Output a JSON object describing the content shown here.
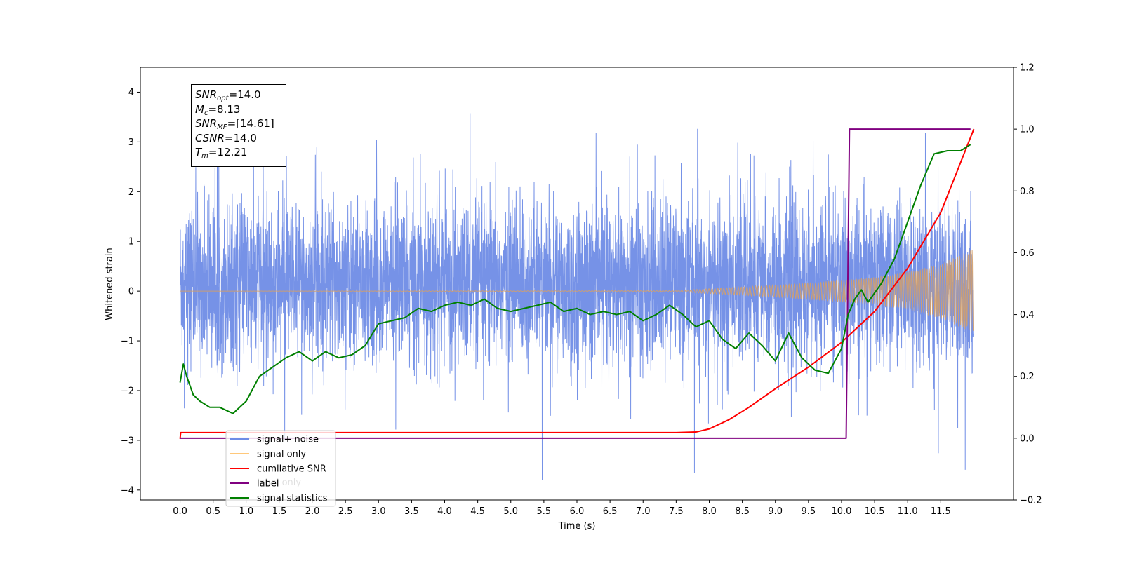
{
  "chart_data": {
    "type": "line",
    "xlabel": "Time (s)",
    "ylabel": "Whitened strain",
    "xlim": [
      -0.6,
      12.6
    ],
    "ylim": [
      -4.2,
      4.5
    ],
    "ylim_right": [
      -0.2,
      1.2
    ],
    "x_ticks": [
      "0.0",
      "0.5",
      "1.0",
      "1.5",
      "2.0",
      "2.5",
      "3.0",
      "3.5",
      "4.0",
      "4.5",
      "5.0",
      "5.5",
      "6.0",
      "6.5",
      "7.0",
      "7.5",
      "8.0",
      "8.5",
      "9.0",
      "9.5",
      "10.0",
      "10.5",
      "11.0",
      "11.5"
    ],
    "y_ticks_left": [
      "4",
      "3",
      "2",
      "1",
      "0",
      "−1",
      "−2",
      "−3",
      "−4"
    ],
    "y_ticks_right": [
      "1.2",
      "1.0",
      "0.8",
      "0.6",
      "0.4",
      "0.2",
      "0.0",
      "−0.2"
    ],
    "legend": {
      "position": "lower-left",
      "entries": [
        "signal+ noise",
        "signal only",
        "cumilative SNR",
        "label",
        "signal statistics"
      ],
      "hidden_entries": [
        "label only"
      ]
    },
    "series": [
      {
        "name": "signal+ noise",
        "axis": "left",
        "color": "#6f8ce6",
        "description_of_shape": "noise band",
        "typical_low": -1.2,
        "typical_high": 1.5,
        "spike_max": 4.1,
        "spike_min": -3.8
      },
      {
        "name": "signal only",
        "axis": "left",
        "color": "#d4a06a",
        "envelope": {
          "x": [
            0.0,
            7.5,
            8.0,
            9.0,
            10.0,
            10.5,
            11.0,
            11.5,
            12.0
          ],
          "amp": [
            0.0,
            0.01,
            0.05,
            0.12,
            0.22,
            0.28,
            0.38,
            0.55,
            0.85
          ]
        }
      },
      {
        "name": "cumilative SNR",
        "axis": "right",
        "color": "#ff0000",
        "x": [
          0.0,
          0.01,
          7.5,
          7.8,
          8.0,
          8.3,
          8.6,
          9.0,
          9.5,
          10.0,
          10.5,
          11.0,
          11.5,
          12.0
        ],
        "y": [
          -0.002,
          0.018,
          0.018,
          0.02,
          0.03,
          0.06,
          0.1,
          0.16,
          0.23,
          0.31,
          0.41,
          0.55,
          0.73,
          1.0
        ]
      },
      {
        "name": "label",
        "axis": "right",
        "color": "#800080",
        "x": [
          0.0,
          10.07,
          10.12,
          11.95
        ],
        "y": [
          0.0,
          0.0,
          1.0,
          1.0
        ]
      },
      {
        "name": "signal statistics",
        "axis": "right",
        "color": "#008000",
        "x": [
          0.0,
          0.05,
          0.1,
          0.2,
          0.3,
          0.45,
          0.6,
          0.8,
          1.0,
          1.2,
          1.4,
          1.6,
          1.8,
          2.0,
          2.2,
          2.4,
          2.6,
          2.8,
          3.0,
          3.2,
          3.4,
          3.6,
          3.8,
          4.0,
          4.2,
          4.4,
          4.6,
          4.8,
          5.0,
          5.2,
          5.4,
          5.6,
          5.8,
          6.0,
          6.2,
          6.4,
          6.6,
          6.8,
          7.0,
          7.2,
          7.4,
          7.6,
          7.8,
          8.0,
          8.2,
          8.4,
          8.6,
          8.8,
          9.0,
          9.2,
          9.4,
          9.6,
          9.8,
          10.0,
          10.1,
          10.2,
          10.3,
          10.4,
          10.6,
          10.8,
          11.0,
          11.2,
          11.4,
          11.6,
          11.8,
          11.95
        ],
        "y": [
          0.18,
          0.24,
          0.2,
          0.14,
          0.12,
          0.1,
          0.1,
          0.08,
          0.12,
          0.2,
          0.23,
          0.26,
          0.28,
          0.25,
          0.28,
          0.26,
          0.27,
          0.3,
          0.37,
          0.38,
          0.39,
          0.42,
          0.41,
          0.43,
          0.44,
          0.43,
          0.45,
          0.42,
          0.41,
          0.42,
          0.43,
          0.44,
          0.41,
          0.42,
          0.4,
          0.41,
          0.4,
          0.41,
          0.38,
          0.4,
          0.43,
          0.4,
          0.36,
          0.38,
          0.32,
          0.29,
          0.34,
          0.3,
          0.25,
          0.34,
          0.26,
          0.22,
          0.21,
          0.29,
          0.4,
          0.45,
          0.48,
          0.44,
          0.5,
          0.58,
          0.7,
          0.82,
          0.92,
          0.93,
          0.93,
          0.95
        ]
      }
    ]
  },
  "info_box": {
    "line1": {
      "label": "SNR",
      "sub": "opt",
      "value": "=14.0"
    },
    "line2": {
      "label": "M",
      "sub": "c",
      "value": "=8.13"
    },
    "line3": {
      "label": "SNR",
      "sub": "MF",
      "value": "=[14.61]"
    },
    "line4": {
      "label": "CSNR",
      "sub": "",
      "value": "=14.0"
    },
    "line5": {
      "label": "T",
      "sub": "m",
      "value": "=12.21"
    }
  }
}
